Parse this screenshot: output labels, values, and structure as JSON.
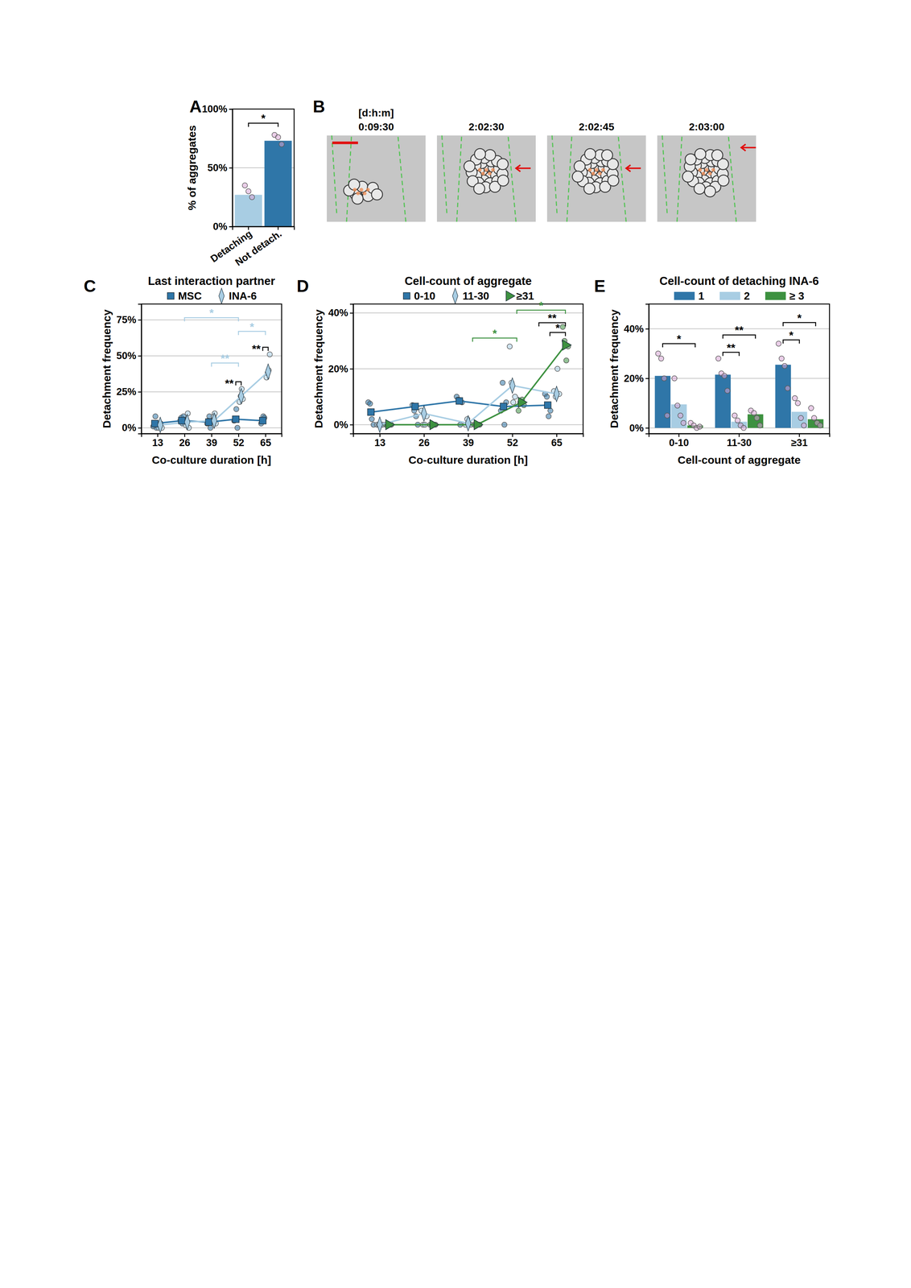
{
  "chart_data": [
    {
      "type": "bar",
      "panel_label": "A",
      "ylabel": "% of aggregates",
      "categories": [
        "Detaching",
        "Not detach."
      ],
      "values": [
        27,
        73
      ],
      "colors": [
        "#a8cde3",
        "#2f76a8"
      ],
      "points": [
        [
          35,
          30,
          25
        ],
        [
          78,
          76,
          70
        ]
      ],
      "ylim": [
        0,
        100
      ],
      "yticks": [
        {
          "value": 0,
          "label": "0%"
        },
        {
          "value": 50,
          "label": "50%"
        },
        {
          "value": 100,
          "label": "100%"
        }
      ],
      "grid": true,
      "annotations": [
        {
          "text": "*",
          "from": 0,
          "to": 1,
          "y": 88,
          "color": "#000000"
        }
      ]
    },
    {
      "type": "image",
      "panel_label": "B",
      "title": "[d:h:m]",
      "categories": [
        "0:09:30",
        "2:02:30",
        "2:02:45",
        "2:03:00"
      ]
    },
    {
      "type": "line",
      "panel_label": "C",
      "title": "Last interaction partner",
      "xlabel": "Co-culture duration [h]",
      "ylabel": "Detachment frequency",
      "categories": [
        "13",
        "26",
        "39",
        "52",
        "65"
      ],
      "ylim": [
        -4,
        86
      ],
      "yticks": [
        {
          "value": 0,
          "label": "0%"
        },
        {
          "value": 25,
          "label": "25%"
        },
        {
          "value": 50,
          "label": "50%"
        },
        {
          "value": 75,
          "label": "75%"
        }
      ],
      "grid": true,
      "legend": "top",
      "series": [
        {
          "name": "MSC",
          "color": "#2f76a8",
          "marker": "square",
          "values": [
            3,
            5,
            4,
            6,
            5
          ],
          "points": [
            [
              1,
              3,
              8,
              0
            ],
            [
              5,
              7,
              3,
              8
            ],
            [
              3,
              5,
              8,
              0
            ],
            [
              5,
              6,
              13,
              0
            ],
            [
              3,
              5,
              8,
              7
            ]
          ]
        },
        {
          "name": "INA-6",
          "color": "#a8cde3",
          "marker": "diamond",
          "values": [
            2,
            4,
            5,
            22,
            39
          ],
          "points": [
            [
              0,
              2,
              3,
              0
            ],
            [
              2,
              5,
              10,
              0
            ],
            [
              5,
              8,
              10,
              3
            ],
            [
              18,
              22,
              27,
              20
            ],
            [
              35,
              38,
              40,
              51
            ]
          ]
        }
      ],
      "annotations": [
        {
          "text": "*",
          "from": 1,
          "to": 3,
          "y": 76.5,
          "color": "#a8cde3"
        },
        {
          "text": "**",
          "from": 2,
          "to": 3,
          "y": 45,
          "color": "#a8cde3"
        },
        {
          "text": "*",
          "from": 3,
          "to": 4,
          "y": 67,
          "color": "#a8cde3"
        },
        {
          "text": "**",
          "from": 2.9,
          "to": 3.1,
          "y": 32,
          "color": "#000000"
        },
        {
          "text": "**",
          "from": 3.9,
          "to": 4.1,
          "y": 56,
          "color": "#000000"
        }
      ]
    },
    {
      "type": "line",
      "panel_label": "D",
      "title": "Cell-count of aggregate",
      "xlabel": "Co-culture duration [h]",
      "ylabel": "Detachment frequency",
      "categories": [
        "13",
        "26",
        "39",
        "52",
        "65"
      ],
      "ylim": [
        -3.2,
        43.2
      ],
      "yticks": [
        {
          "value": 0,
          "label": "0%"
        },
        {
          "value": 20,
          "label": "20%"
        },
        {
          "value": 40,
          "label": "40%"
        }
      ],
      "grid": true,
      "legend": "top",
      "series": [
        {
          "name": "0-10",
          "color": "#2f76a8",
          "marker": "square",
          "values": [
            4.5,
            6.5,
            8.5,
            6.5,
            7
          ],
          "points": [
            [
              8,
              7.5,
              2,
              0
            ],
            [
              7,
              5,
              3,
              0
            ],
            [
              10,
              9,
              0,
              8
            ],
            [
              5,
              15,
              0,
              8
            ],
            [
              11,
              10,
              3,
              5
            ]
          ]
        },
        {
          "name": "11-30",
          "color": "#a8cde3",
          "marker": "diamond",
          "values": [
            0,
            4,
            0.5,
            14,
            11
          ],
          "points": [
            [
              0,
              0,
              0,
              0
            ],
            [
              5,
              0,
              0,
              3
            ],
            [
              0,
              2,
              0,
              0
            ],
            [
              28,
              15,
              8,
              10
            ],
            [
              12,
              10,
              20,
              11
            ]
          ]
        },
        {
          "name": "≥31",
          "color": "#3d9140",
          "marker": "triangle",
          "values": [
            0,
            0,
            0,
            8,
            28.5
          ],
          "points": [
            [
              0,
              0,
              0,
              0
            ],
            [
              0,
              0,
              0,
              0
            ],
            [
              0,
              0,
              0,
              0
            ],
            [
              5,
              8,
              9,
              7
            ],
            [
              35,
              30,
              23,
              28
            ]
          ]
        }
      ],
      "annotations": [
        {
          "text": "*",
          "from": 2.1,
          "to": 3.1,
          "y": 31,
          "color": "#3d9140"
        },
        {
          "text": "*",
          "from": 3.1,
          "to": 4.2,
          "y": 41,
          "color": "#3d9140"
        },
        {
          "text": "**",
          "from": 3.6,
          "to": 4.2,
          "y": 36.5,
          "color": "#000000"
        },
        {
          "text": "*",
          "from": 3.85,
          "to": 4.2,
          "y": 33,
          "color": "#000000"
        }
      ]
    },
    {
      "type": "bar",
      "panel_label": "E",
      "title": "Cell-count of detaching INA-6",
      "xlabel": "Cell-count of aggregate",
      "ylabel": "Detachment frequency",
      "categories": [
        "0-10",
        "11-30",
        "≥31"
      ],
      "ylim": [
        -2.3,
        50
      ],
      "yticks": [
        {
          "value": 0,
          "label": "0%"
        },
        {
          "value": 20,
          "label": "20%"
        },
        {
          "value": 40,
          "label": "40%"
        }
      ],
      "grid": true,
      "legend": "top",
      "series": [
        {
          "name": "1",
          "color": "#2f76a8",
          "values": [
            21,
            21.5,
            25.5
          ],
          "points": [
            [
              30,
              28,
              20,
              5
            ],
            [
              28,
              22,
              21,
              15
            ],
            [
              34,
              28,
              25,
              16
            ]
          ]
        },
        {
          "name": "2",
          "color": "#a8cde3",
          "values": [
            9.5,
            2.5,
            6.5
          ],
          "points": [
            [
              20,
              9,
              5,
              2
            ],
            [
              5,
              3,
              1,
              0
            ],
            [
              12,
              10,
              4,
              1
            ]
          ]
        },
        {
          "name": "≥ 3",
          "color": "#3d9140",
          "values": [
            1,
            5.5,
            3.5
          ],
          "points": [
            [
              2,
              1,
              0,
              0.5
            ],
            [
              7,
              6,
              4,
              1
            ],
            [
              8,
              4,
              2,
              1
            ]
          ]
        }
      ],
      "annotations": [
        {
          "text": "*",
          "from": -0.27,
          "to": 0.27,
          "y": 34,
          "color": "#000000"
        },
        {
          "text": "**",
          "from": 0.73,
          "to": 1.0,
          "y": 30.5,
          "color": "#000000"
        },
        {
          "text": "**",
          "from": 0.73,
          "to": 1.27,
          "y": 37.5,
          "color": "#000000"
        },
        {
          "text": "*",
          "from": 1.73,
          "to": 2.0,
          "y": 35.5,
          "color": "#000000"
        },
        {
          "text": "*",
          "from": 1.73,
          "to": 2.27,
          "y": 42.5,
          "color": "#000000"
        }
      ]
    }
  ]
}
